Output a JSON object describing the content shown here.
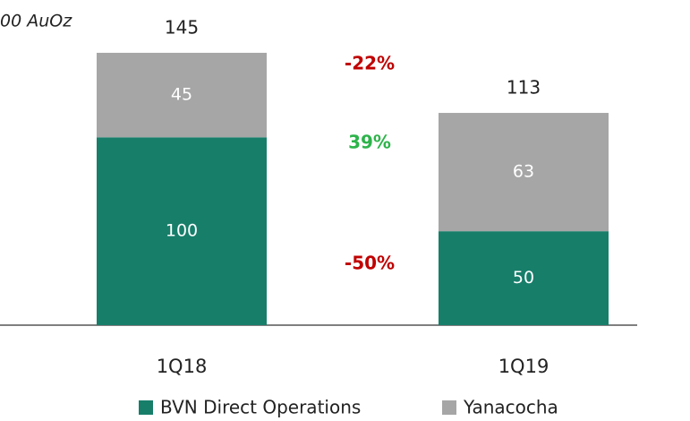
{
  "chart_data": {
    "type": "stacked-bar",
    "title": "00 AuOz",
    "categories": [
      "1Q18",
      "1Q19"
    ],
    "series": [
      {
        "name": "BVN Direct Operations",
        "color": "#177e6a",
        "values": [
          100,
          50
        ]
      },
      {
        "name": "Yanacocha",
        "color": "#a6a6a6",
        "values": [
          45,
          63
        ]
      }
    ],
    "totals": [
      145,
      113
    ],
    "ylim": [
      0,
      160
    ],
    "annotations": [
      {
        "text": "-22%",
        "color": "#c00000"
      },
      {
        "text": "39%",
        "color": "#2db34a"
      },
      {
        "text": "-50%",
        "color": "#c00000"
      }
    ]
  }
}
